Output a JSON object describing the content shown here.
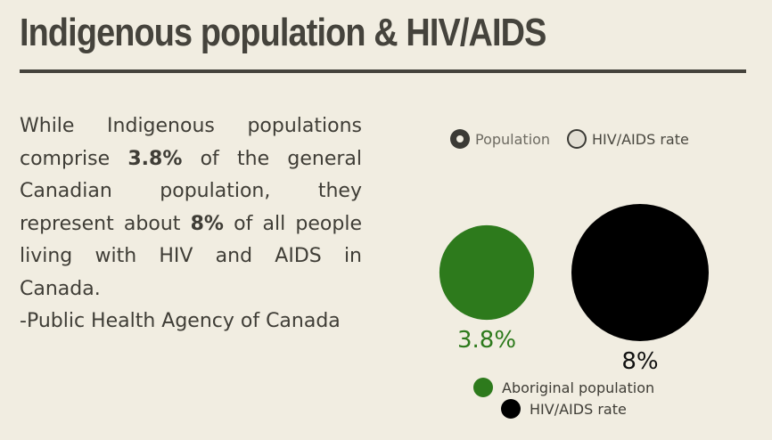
{
  "title": "Indigenous population & HIV/AIDS",
  "body": {
    "p1": "While Indigenous populations comprise ",
    "b1": "3.8%",
    "p2": " of the general Canadian population, they represent about ",
    "b2": "8%",
    "p3": " of all people living with HIV and AIDS in Canada.",
    "source": "-Public Health Agency of Canada"
  },
  "toggles": [
    {
      "label": "Population",
      "selected": true
    },
    {
      "label": "HIV/AIDS rate",
      "selected": false
    }
  ],
  "chart_data": {
    "type": "bubble",
    "series": [
      {
        "name": "Aboriginal population",
        "value": 3.8,
        "label": "3.8%",
        "color": "#2d7a1c"
      },
      {
        "name": "HIV/AIDS rate",
        "value": 8,
        "label": "8%",
        "color": "#000000"
      }
    ],
    "legend_position": "bottom"
  }
}
